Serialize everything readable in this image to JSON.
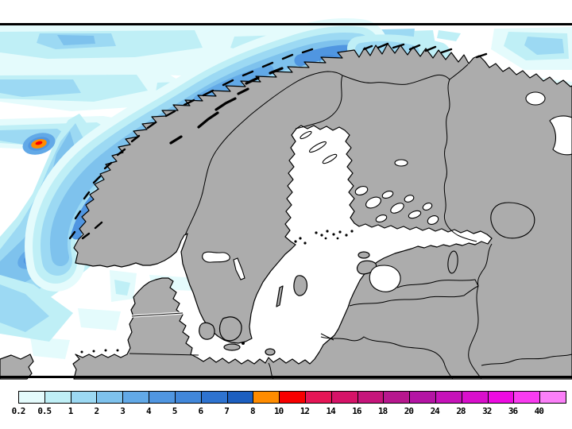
{
  "legend": {
    "tick_labels": [
      "0.2",
      "0.5",
      "1",
      "2",
      "3",
      "4",
      "5",
      "6",
      "7",
      "8",
      "10",
      "12",
      "14",
      "16",
      "18",
      "20",
      "24",
      "28",
      "32",
      "36",
      "40"
    ],
    "colors": [
      "#E4FBFC",
      "#BFEFF6",
      "#9CD9F3",
      "#7EC2ED",
      "#62A9E7",
      "#5096E1",
      "#4187DA",
      "#2E73D0",
      "#1C5FC0",
      "#FF8C00",
      "#F80000",
      "#E51556",
      "#D61368",
      "#C6157B",
      "#B7178E",
      "#B414A4",
      "#C612B9",
      "#D90FCC",
      "#EE0BE2",
      "#F93BF0",
      "#FB7FF8"
    ]
  },
  "map": {
    "sea_color": "#FFFFFF",
    "land_color": "#ACACAC",
    "coastline_color": "#000000",
    "frame_color": "#000000"
  }
}
